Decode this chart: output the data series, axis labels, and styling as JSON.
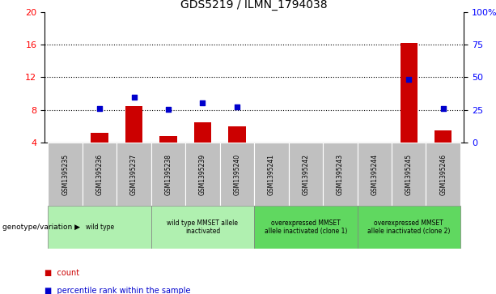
{
  "title": "GDS5219 / ILMN_1794038",
  "samples": [
    "GSM1395235",
    "GSM1395236",
    "GSM1395237",
    "GSM1395238",
    "GSM1395239",
    "GSM1395240",
    "GSM1395241",
    "GSM1395242",
    "GSM1395243",
    "GSM1395244",
    "GSM1395245",
    "GSM1395246"
  ],
  "count_values": [
    4.0,
    5.2,
    8.5,
    4.8,
    6.5,
    6.0,
    null,
    null,
    null,
    null,
    16.2,
    5.5
  ],
  "percentile_values": [
    null,
    8.2,
    9.6,
    8.1,
    8.9,
    8.4,
    null,
    null,
    null,
    null,
    11.7,
    8.2
  ],
  "ylim_left": [
    4,
    20
  ],
  "ylim_right": [
    0,
    100
  ],
  "yticks_left": [
    4,
    8,
    12,
    16,
    20
  ],
  "ytick_labels_left": [
    "4",
    "8",
    "12",
    "16",
    "20"
  ],
  "yticks_right": [
    0,
    25,
    50,
    75,
    100
  ],
  "ytick_labels_right": [
    "0",
    "25",
    "50",
    "75",
    "100%"
  ],
  "grid_yticks": [
    8,
    12,
    16
  ],
  "groups": [
    {
      "label": "wild type",
      "start": 0,
      "end": 2,
      "color": "#b0f0b0"
    },
    {
      "label": "wild type MMSET allele\ninactivated",
      "start": 3,
      "end": 5,
      "color": "#b0f0b0"
    },
    {
      "label": "overexpressed MMSET\nallele inactivated (clone 1)",
      "start": 6,
      "end": 8,
      "color": "#60d860"
    },
    {
      "label": "overexpressed MMSET\nallele inactivated (clone 2)",
      "start": 9,
      "end": 11,
      "color": "#60d860"
    }
  ],
  "bar_color": "#cc0000",
  "dot_color": "#0000cc",
  "bar_width": 0.5,
  "dot_size": 18,
  "count_label": "count",
  "percentile_label": "percentile rank within the sample",
  "genotype_label": "genotype/variation",
  "tick_bg_color": "#c0c0c0"
}
